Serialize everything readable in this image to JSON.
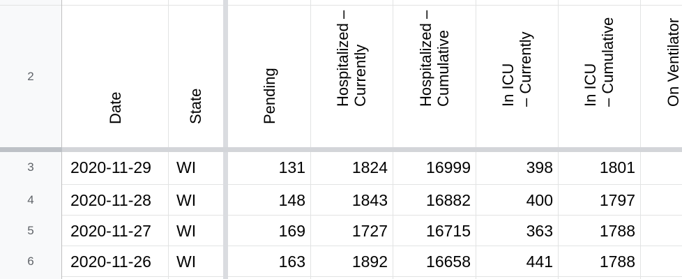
{
  "header_row_number": "2",
  "columns": [
    {
      "key": "date",
      "label": "Date"
    },
    {
      "key": "state",
      "label": "State"
    },
    {
      "key": "pending",
      "label": "Pending"
    },
    {
      "key": "hosp_current",
      "label": "Hospitalized –\nCurrently"
    },
    {
      "key": "hosp_cumulative",
      "label": "Hospitalized –\nCumulative"
    },
    {
      "key": "icu_current",
      "label": "In ICU\n– Currently"
    },
    {
      "key": "icu_cumulative",
      "label": "In ICU\n– Cumulative"
    },
    {
      "key": "vent_current",
      "label": "On Ventilator\n– Currently"
    }
  ],
  "rows": [
    {
      "row_number": "3",
      "date": "2020-11-29",
      "state": "WI",
      "pending": "131",
      "hosp_current": "1824",
      "hosp_cumulative": "16999",
      "icu_current": "398",
      "icu_cumulative": "1801",
      "vent_current": ""
    },
    {
      "row_number": "4",
      "date": "2020-11-28",
      "state": "WI",
      "pending": "148",
      "hosp_current": "1843",
      "hosp_cumulative": "16882",
      "icu_current": "400",
      "icu_cumulative": "1797",
      "vent_current": ""
    },
    {
      "row_number": "5",
      "date": "2020-11-27",
      "state": "WI",
      "pending": "169",
      "hosp_current": "1727",
      "hosp_cumulative": "16715",
      "icu_current": "363",
      "icu_cumulative": "1788",
      "vent_current": ""
    },
    {
      "row_number": "6",
      "date": "2020-11-26",
      "state": "WI",
      "pending": "163",
      "hosp_current": "1892",
      "hosp_cumulative": "16658",
      "icu_current": "441",
      "icu_cumulative": "1788",
      "vent_current": ""
    }
  ]
}
